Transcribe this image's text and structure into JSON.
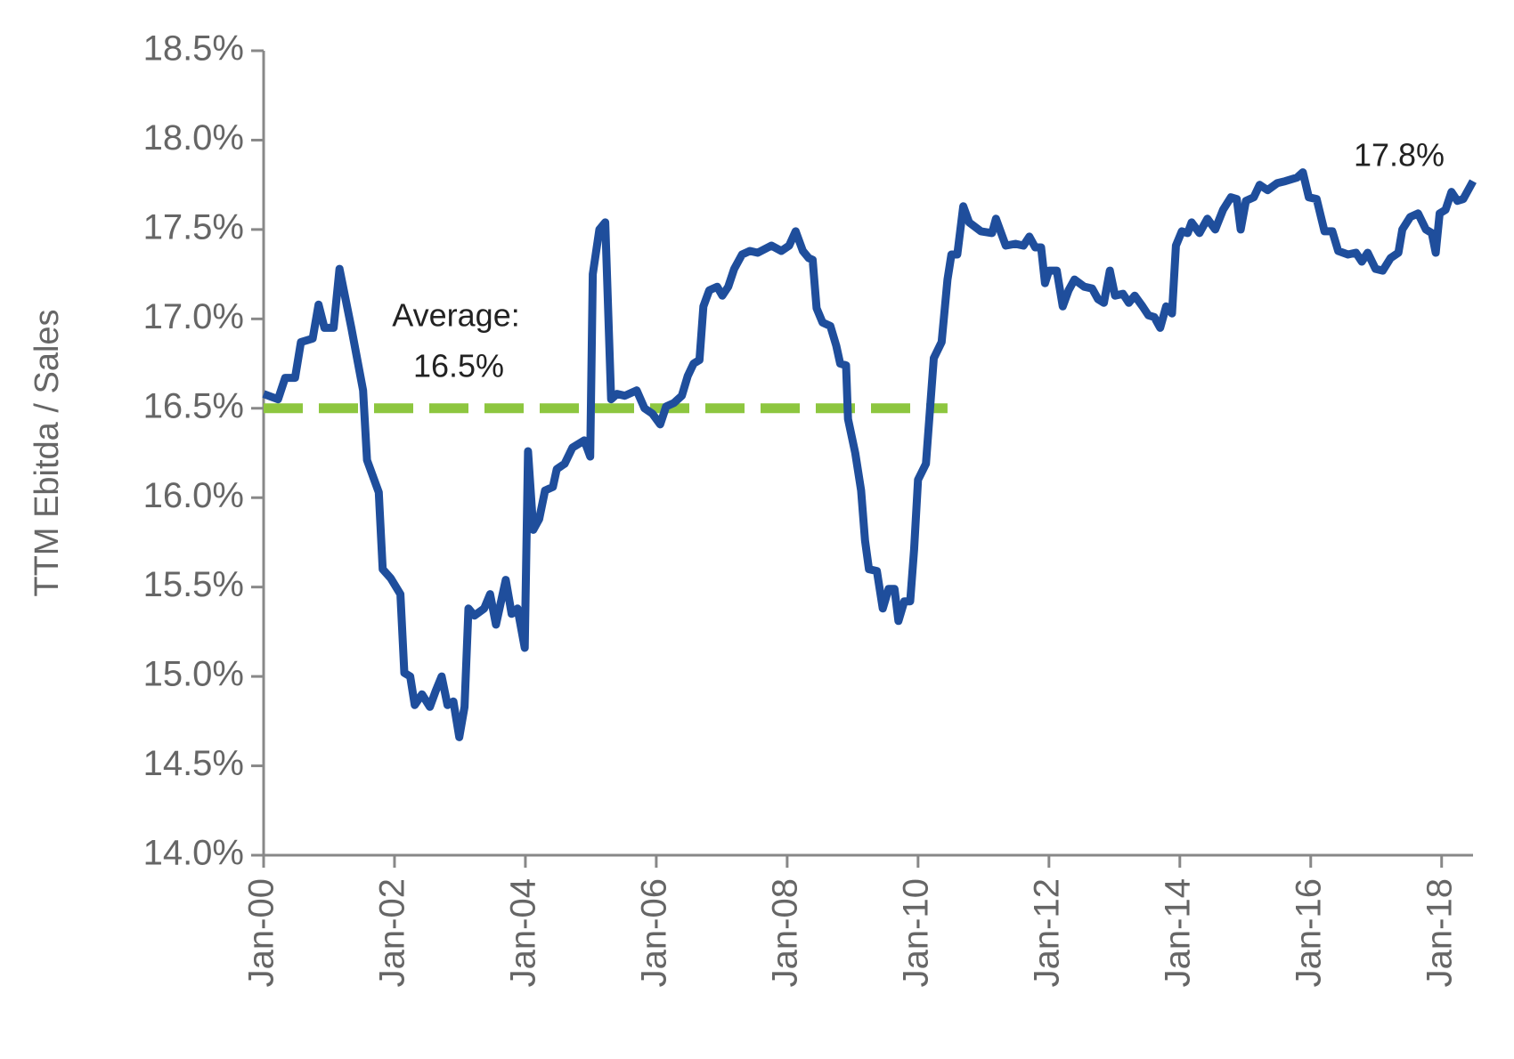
{
  "chart_data": {
    "type": "line",
    "y_axis_label": "TTM Ebitda / Sales",
    "xlim": [
      2000,
      2018.48
    ],
    "xticks": [
      {
        "value": 2000,
        "label": "Jan-00"
      },
      {
        "value": 2002,
        "label": "Jan-02"
      },
      {
        "value": 2004,
        "label": "Jan-04"
      },
      {
        "value": 2006,
        "label": "Jan-06"
      },
      {
        "value": 2008,
        "label": "Jan-08"
      },
      {
        "value": 2010,
        "label": "Jan-10"
      },
      {
        "value": 2012,
        "label": "Jan-12"
      },
      {
        "value": 2014,
        "label": "Jan-14"
      },
      {
        "value": 2016,
        "label": "Jan-16"
      },
      {
        "value": 2018,
        "label": "Jan-18"
      }
    ],
    "ylim": [
      14.0,
      18.5
    ],
    "yticks": [
      {
        "value": 14.0,
        "label": "14.0%"
      },
      {
        "value": 14.5,
        "label": "14.5%"
      },
      {
        "value": 15.0,
        "label": "15.0%"
      },
      {
        "value": 15.5,
        "label": "15.5%"
      },
      {
        "value": 16.0,
        "label": "16.0%"
      },
      {
        "value": 16.5,
        "label": "16.5%"
      },
      {
        "value": 17.0,
        "label": "17.0%"
      },
      {
        "value": 17.5,
        "label": "17.5%"
      },
      {
        "value": 18.0,
        "label": "18.0%"
      },
      {
        "value": 18.5,
        "label": "18.5%"
      }
    ],
    "x": [
      2000.0,
      2000.22,
      2000.33,
      2000.48,
      2000.57,
      2000.75,
      2000.84,
      2000.93,
      2001.07,
      2001.16,
      2001.34,
      2001.52,
      2001.58,
      2001.76,
      2001.82,
      2001.94,
      2002.09,
      2002.15,
      2002.24,
      2002.31,
      2002.42,
      2002.54,
      2002.63,
      2002.72,
      2002.81,
      2002.9,
      2002.99,
      2003.07,
      2003.13,
      2003.22,
      2003.37,
      2003.46,
      2003.55,
      2003.7,
      2003.79,
      2003.88,
      2003.99,
      2004.04,
      2004.12,
      2004.21,
      2004.3,
      2004.42,
      2004.48,
      2004.6,
      2004.72,
      2004.9,
      2004.99,
      2005.03,
      2005.13,
      2005.22,
      2005.31,
      2005.4,
      2005.52,
      2005.7,
      2005.82,
      2005.94,
      2006.06,
      2006.15,
      2006.27,
      2006.39,
      2006.48,
      2006.57,
      2006.66,
      2006.72,
      2006.81,
      2006.93,
      2007.01,
      2007.1,
      2007.19,
      2007.31,
      2007.43,
      2007.55,
      2007.76,
      2007.91,
      2008.03,
      2008.13,
      2008.24,
      2008.33,
      2008.39,
      2008.45,
      2008.54,
      2008.66,
      2008.75,
      2008.81,
      2008.9,
      2008.93,
      2009.04,
      2009.13,
      2009.19,
      2009.25,
      2009.37,
      2009.46,
      2009.55,
      2009.64,
      2009.7,
      2009.79,
      2009.88,
      2009.94,
      2010.0,
      2010.12,
      2010.24,
      2010.36,
      2010.45,
      2010.51,
      2010.6,
      2010.69,
      2010.78,
      2010.96,
      2011.13,
      2011.19,
      2011.34,
      2011.49,
      2011.61,
      2011.7,
      2011.79,
      2011.88,
      2011.94,
      2012.0,
      2012.12,
      2012.21,
      2012.3,
      2012.39,
      2012.54,
      2012.66,
      2012.75,
      2012.84,
      2012.93,
      2013.01,
      2013.13,
      2013.22,
      2013.31,
      2013.43,
      2013.52,
      2013.61,
      2013.7,
      2013.79,
      2013.88,
      2013.94,
      2014.03,
      2014.12,
      2014.18,
      2014.3,
      2014.42,
      2014.54,
      2014.66,
      2014.78,
      2014.87,
      2014.93,
      2015.01,
      2015.13,
      2015.22,
      2015.34,
      2015.49,
      2015.61,
      2015.79,
      2015.88,
      2015.97,
      2016.09,
      2016.21,
      2016.33,
      2016.42,
      2016.57,
      2016.69,
      2016.78,
      2016.87,
      2016.99,
      2017.1,
      2017.22,
      2017.34,
      2017.4,
      2017.52,
      2017.64,
      2017.76,
      2017.85,
      2017.91,
      2017.97,
      2018.06,
      2018.15,
      2018.24,
      2018.33,
      2018.48
    ],
    "series": [
      {
        "name": "TTM Ebitda / Sales",
        "color": "#1f4e9c",
        "values": [
          16.58,
          16.55,
          16.67,
          16.67,
          16.87,
          16.89,
          17.08,
          16.95,
          16.95,
          17.28,
          16.95,
          16.6,
          16.21,
          16.03,
          15.6,
          15.55,
          15.46,
          15.02,
          15.0,
          14.84,
          14.9,
          14.83,
          14.92,
          15.0,
          14.84,
          14.86,
          14.66,
          14.83,
          15.38,
          15.34,
          15.38,
          15.46,
          15.29,
          15.54,
          15.35,
          15.38,
          15.16,
          16.26,
          15.82,
          15.88,
          16.04,
          16.06,
          16.16,
          16.19,
          16.28,
          16.32,
          16.23,
          17.25,
          17.5,
          17.54,
          16.55,
          16.58,
          16.57,
          16.6,
          16.5,
          16.47,
          16.41,
          16.51,
          16.53,
          16.57,
          16.68,
          16.75,
          16.77,
          17.07,
          17.16,
          17.18,
          17.13,
          17.18,
          17.28,
          17.36,
          17.38,
          17.37,
          17.41,
          17.38,
          17.41,
          17.49,
          17.38,
          17.34,
          17.33,
          17.06,
          16.98,
          16.96,
          16.85,
          16.75,
          16.74,
          16.44,
          16.25,
          16.04,
          15.76,
          15.6,
          15.59,
          15.38,
          15.49,
          15.49,
          15.31,
          15.42,
          15.42,
          15.71,
          16.1,
          16.19,
          16.78,
          16.87,
          17.22,
          17.36,
          17.36,
          17.63,
          17.54,
          17.49,
          17.48,
          17.56,
          17.41,
          17.42,
          17.41,
          17.46,
          17.4,
          17.4,
          17.2,
          17.27,
          17.27,
          17.07,
          17.16,
          17.22,
          17.18,
          17.17,
          17.11,
          17.09,
          17.27,
          17.13,
          17.14,
          17.09,
          17.13,
          17.07,
          17.02,
          17.01,
          16.95,
          17.07,
          17.03,
          17.41,
          17.49,
          17.48,
          17.54,
          17.48,
          17.56,
          17.5,
          17.61,
          17.68,
          17.67,
          17.5,
          17.66,
          17.68,
          17.75,
          17.72,
          17.76,
          17.77,
          17.79,
          17.82,
          17.68,
          17.67,
          17.49,
          17.49,
          17.38,
          17.36,
          17.37,
          17.32,
          17.37,
          17.28,
          17.27,
          17.34,
          17.37,
          17.5,
          17.57,
          17.59,
          17.5,
          17.48,
          17.37,
          17.59,
          17.61,
          17.71,
          17.66,
          17.67,
          17.77
        ]
      }
    ],
    "average_line": {
      "value": 16.5,
      "x": [
        2000,
        2010.45
      ],
      "color": "#8dc63f",
      "label": [
        "Average:",
        "16.5%"
      ]
    },
    "end_label": "17.8%"
  }
}
